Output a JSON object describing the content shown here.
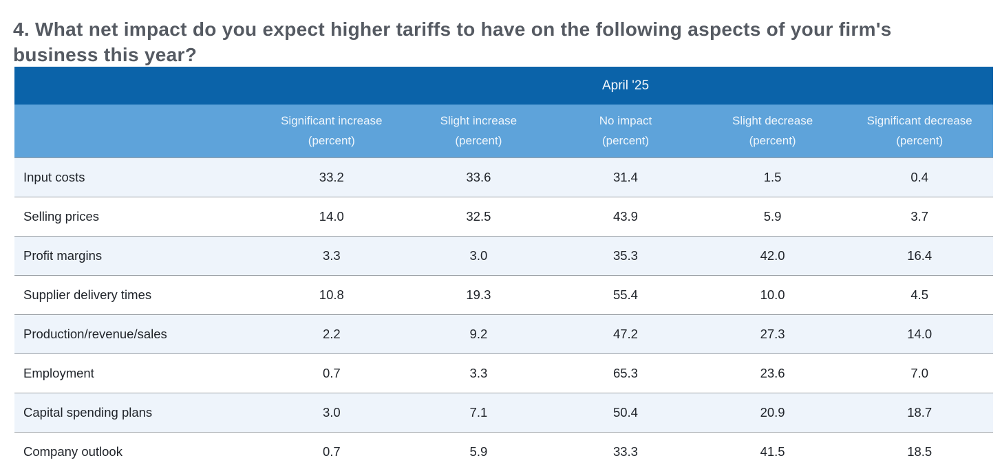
{
  "title": "4. What net impact do you expect higher tariffs to have on the following aspects of your firm's business this year?",
  "table": {
    "period_header": "April '25",
    "columns": [
      {
        "label": "Significant increase",
        "sub": "(percent)"
      },
      {
        "label": "Slight increase",
        "sub": "(percent)"
      },
      {
        "label": "No impact",
        "sub": "(percent)"
      },
      {
        "label": "Slight decrease",
        "sub": "(percent)"
      },
      {
        "label": "Significant decrease",
        "sub": "(percent)"
      }
    ],
    "rows": [
      {
        "label": "Input costs",
        "values": [
          "33.2",
          "33.6",
          "31.4",
          "1.5",
          "0.4"
        ]
      },
      {
        "label": "Selling prices",
        "values": [
          "14.0",
          "32.5",
          "43.9",
          "5.9",
          "3.7"
        ]
      },
      {
        "label": "Profit margins",
        "values": [
          "3.3",
          "3.0",
          "35.3",
          "42.0",
          "16.4"
        ]
      },
      {
        "label": "Supplier delivery times",
        "values": [
          "10.8",
          "19.3",
          "55.4",
          "10.0",
          "4.5"
        ]
      },
      {
        "label": "Production/revenue/sales",
        "values": [
          "2.2",
          "9.2",
          "47.2",
          "27.3",
          "14.0"
        ]
      },
      {
        "label": "Employment",
        "values": [
          "0.7",
          "3.3",
          "65.3",
          "23.6",
          "7.0"
        ]
      },
      {
        "label": "Capital spending plans",
        "values": [
          "3.0",
          "7.1",
          "50.4",
          "20.9",
          "18.7"
        ]
      },
      {
        "label": "Company outlook",
        "values": [
          "0.7",
          "5.9",
          "33.3",
          "41.5",
          "18.5"
        ]
      }
    ]
  },
  "colors": {
    "header_dark_blue": "#0b63a9",
    "header_light_blue": "#5ea3da",
    "row_alt_blue": "#eef4fb",
    "row_border_gray": "#9ba0a6",
    "title_text": "#555a62",
    "cell_text": "#1f2329",
    "header_text": "#f4f8fc"
  },
  "chart_data": {
    "type": "table",
    "title": "4. What net impact do you expect higher tariffs to have on the following aspects of your firm's business this year?",
    "period": "April '25",
    "unit": "percent",
    "columns": [
      "Significant increase",
      "Slight increase",
      "No impact",
      "Slight decrease",
      "Significant decrease"
    ],
    "rows": [
      {
        "label": "Input costs",
        "values": [
          33.2,
          33.6,
          31.4,
          1.5,
          0.4
        ]
      },
      {
        "label": "Selling prices",
        "values": [
          14.0,
          32.5,
          43.9,
          5.9,
          3.7
        ]
      },
      {
        "label": "Profit margins",
        "values": [
          3.3,
          3.0,
          35.3,
          42.0,
          16.4
        ]
      },
      {
        "label": "Supplier delivery times",
        "values": [
          10.8,
          19.3,
          55.4,
          10.0,
          4.5
        ]
      },
      {
        "label": "Production/revenue/sales",
        "values": [
          2.2,
          9.2,
          47.2,
          27.3,
          14.0
        ]
      },
      {
        "label": "Employment",
        "values": [
          0.7,
          3.3,
          65.3,
          23.6,
          7.0
        ]
      },
      {
        "label": "Capital spending plans",
        "values": [
          3.0,
          7.1,
          50.4,
          20.9,
          18.7
        ]
      },
      {
        "label": "Company outlook",
        "values": [
          0.7,
          5.9,
          33.3,
          41.5,
          18.5
        ]
      }
    ]
  }
}
